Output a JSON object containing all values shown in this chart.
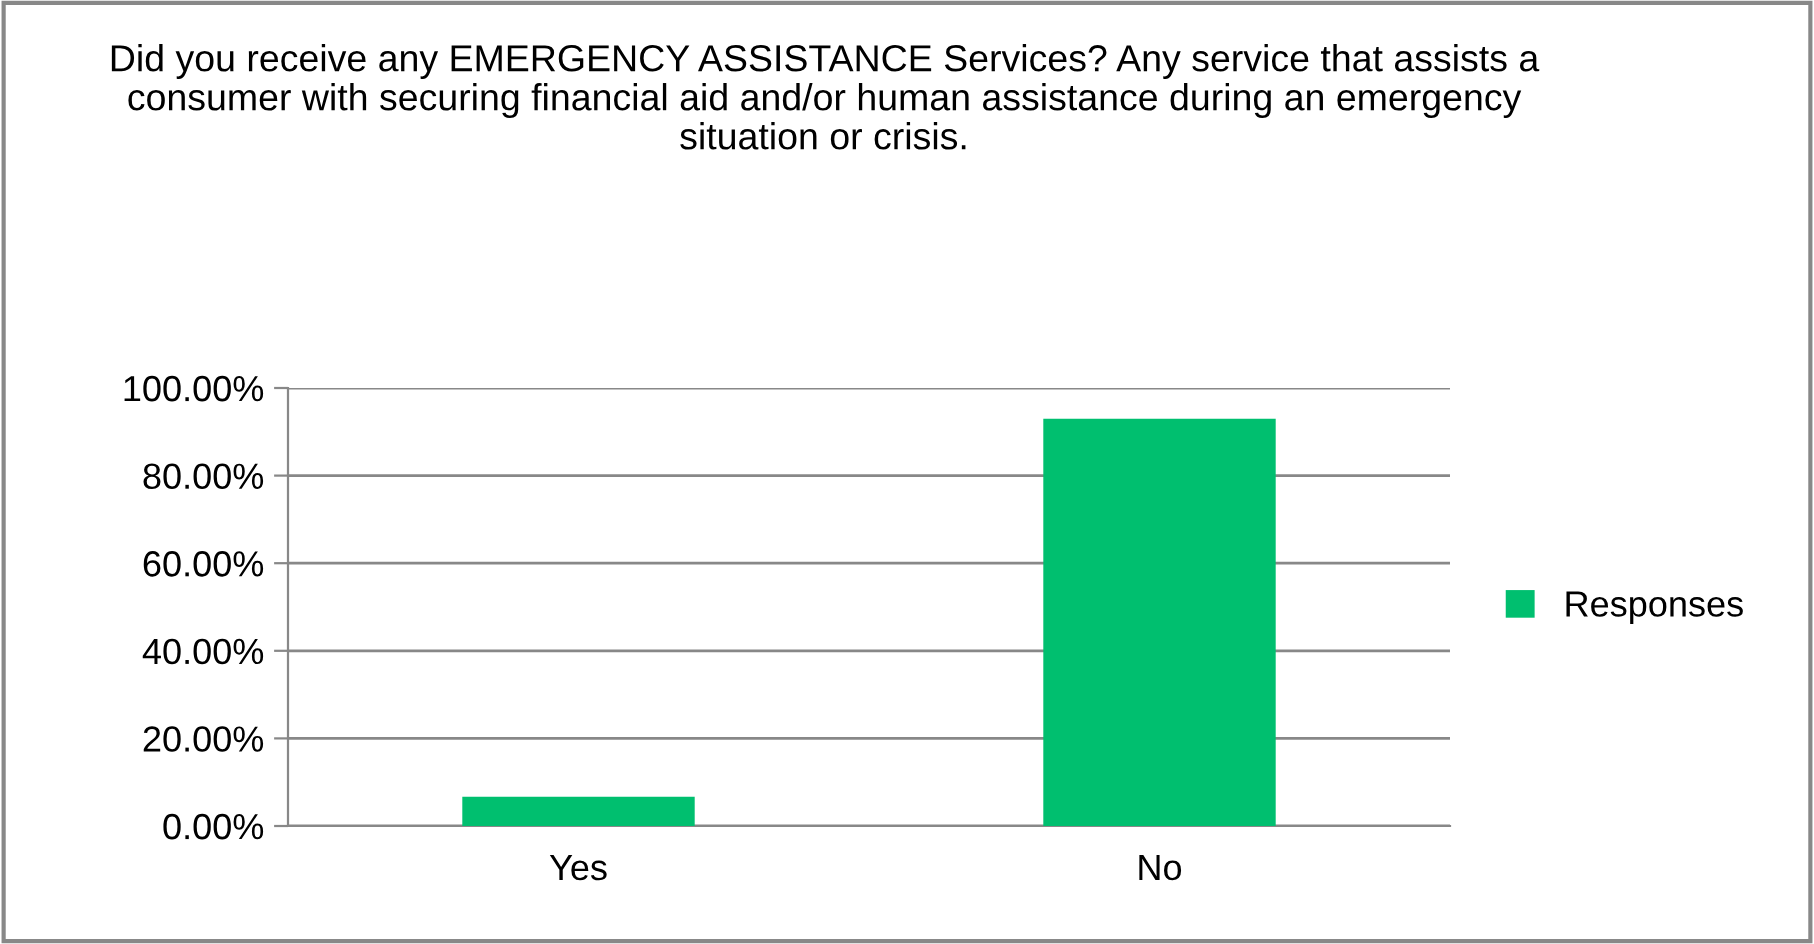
{
  "chart_data": {
    "type": "bar",
    "title": "Did you receive any EMERGENCY ASSISTANCE Services? Any service that assists a consumer with securing financial aid and/or human assistance during an emergency situation or crisis.",
    "categories": [
      "Yes",
      "No"
    ],
    "series": [
      {
        "name": "Responses",
        "color": "#00bf6f",
        "values": [
          6.7,
          93.0
        ]
      }
    ],
    "ylim": [
      0,
      100
    ],
    "yticks": [
      {
        "value": 0,
        "label": "0.00%"
      },
      {
        "value": 20,
        "label": "20.00%"
      },
      {
        "value": 40,
        "label": "40.00%"
      },
      {
        "value": 60,
        "label": "60.00%"
      },
      {
        "value": 80,
        "label": "80.00%"
      },
      {
        "value": 100,
        "label": "100.00%"
      }
    ],
    "grid": "y",
    "legend": "right"
  }
}
